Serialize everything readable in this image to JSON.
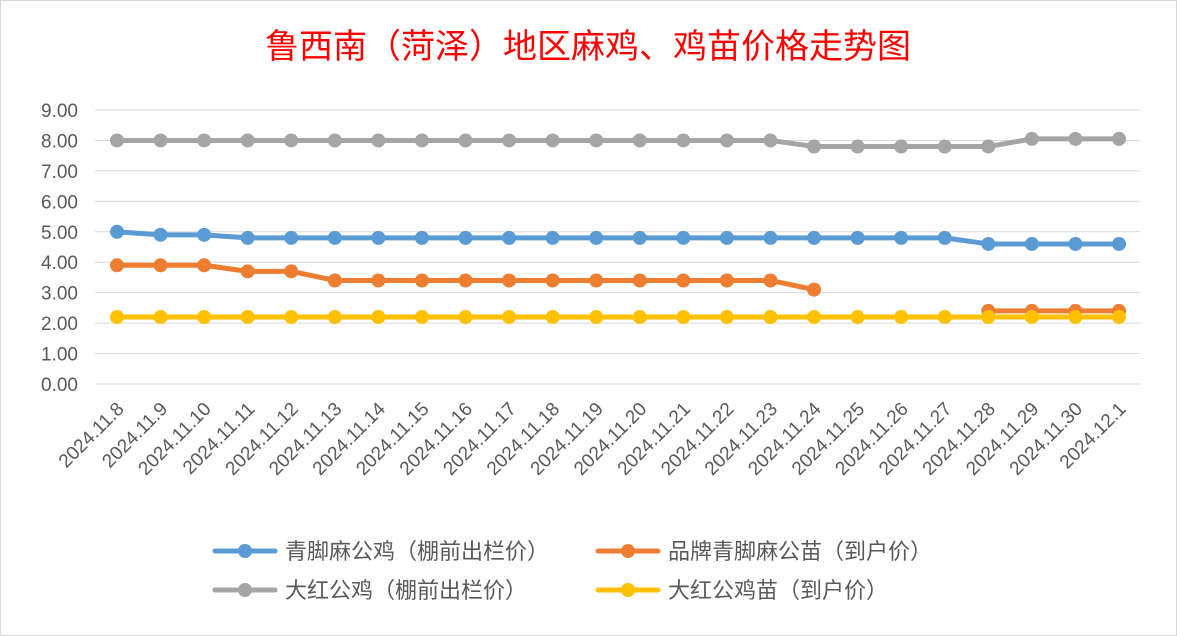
{
  "chart_data": {
    "type": "line",
    "title": "鲁西南（菏泽）地区麻鸡、鸡苗价格走势图",
    "xlabel": "",
    "ylabel": "",
    "ylim": [
      0,
      9
    ],
    "yticks": [
      "0.00",
      "1.00",
      "2.00",
      "3.00",
      "4.00",
      "5.00",
      "6.00",
      "7.00",
      "8.00",
      "9.00"
    ],
    "grid": true,
    "legend_position": "bottom",
    "categories": [
      "2024.11.8",
      "2024.11.9",
      "2024.11.10",
      "2024.11.11",
      "2024.11.12",
      "2024.11.13",
      "2024.11.14",
      "2024.11.15",
      "2024.11.16",
      "2024.11.17",
      "2024.11.18",
      "2024.11.19",
      "2024.11.20",
      "2024.11.21",
      "2024.11.22",
      "2024.11.23",
      "2024.11.24",
      "2024.11.25",
      "2024.11.26",
      "2024.11.27",
      "2024.11.28",
      "2024.11.29",
      "2024.11.30",
      "2024.12.1"
    ],
    "series": [
      {
        "name": "青脚麻公鸡（棚前出栏价）",
        "color": "#5b9bd5",
        "values": [
          5.0,
          4.9,
          4.9,
          4.8,
          4.8,
          4.8,
          4.8,
          4.8,
          4.8,
          4.8,
          4.8,
          4.8,
          4.8,
          4.8,
          4.8,
          4.8,
          4.8,
          4.8,
          4.8,
          4.8,
          4.6,
          4.6,
          4.6,
          4.6
        ]
      },
      {
        "name": "品牌青脚麻公苗（到户价）",
        "color": "#ed7d31",
        "values": [
          3.9,
          3.9,
          3.9,
          3.7,
          3.7,
          3.4,
          3.4,
          3.4,
          3.4,
          3.4,
          3.4,
          3.4,
          3.4,
          3.4,
          3.4,
          3.4,
          3.1,
          null,
          null,
          null,
          2.4,
          2.4,
          2.4,
          2.4
        ]
      },
      {
        "name": "大红公鸡（棚前出栏价）",
        "color": "#a5a5a5",
        "values": [
          8.0,
          8.0,
          8.0,
          8.0,
          8.0,
          8.0,
          8.0,
          8.0,
          8.0,
          8.0,
          8.0,
          8.0,
          8.0,
          8.0,
          8.0,
          8.0,
          7.8,
          7.8,
          7.8,
          7.8,
          7.8,
          8.05,
          8.05,
          8.05
        ]
      },
      {
        "name": "大红公鸡苗（到户价）",
        "color": "#ffc000",
        "values": [
          2.2,
          2.2,
          2.2,
          2.2,
          2.2,
          2.2,
          2.2,
          2.2,
          2.2,
          2.2,
          2.2,
          2.2,
          2.2,
          2.2,
          2.2,
          2.2,
          2.2,
          2.2,
          2.2,
          2.2,
          2.2,
          2.2,
          2.2,
          2.2
        ]
      }
    ]
  },
  "colors": {
    "title": "#ff0000",
    "axis_text": "#595959",
    "grid": "#d9d9d9"
  }
}
